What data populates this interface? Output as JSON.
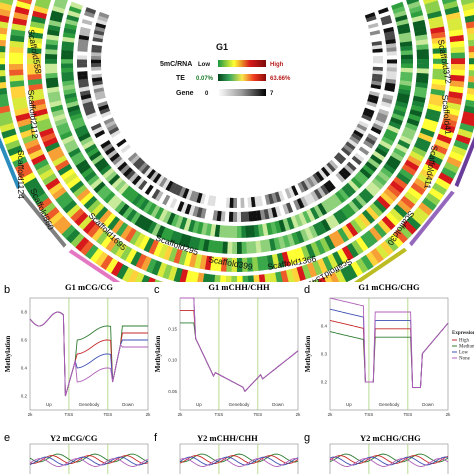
{
  "circos": {
    "title": "G1",
    "legend": [
      {
        "label": "5mC/RNA",
        "low": "Low",
        "high": "High",
        "colors": [
          "#1a9641",
          "#ffff33",
          "#d7191c",
          "#7b0b0b"
        ]
      },
      {
        "label": "TE",
        "low": "0.07%",
        "high": "63.66%",
        "colors": [
          "#00441b",
          "#41ab5d",
          "#f7e94a",
          "#f03b20",
          "#8c0a0a"
        ]
      },
      {
        "label": "Gene",
        "low": "0",
        "high": "7",
        "colors": [
          "#ffffff",
          "#999999",
          "#000000"
        ]
      }
    ],
    "low_color": "#2e9e3e",
    "high_color": "#c5181c",
    "scaffolds_left": [
      "Scaffold558",
      "Scaffold2112",
      "Scaffold1124",
      "Scaffold860",
      "Scaffold1695",
      "Scaffold295",
      "Scaffold399",
      "Scaffold1366"
    ],
    "scaffolds_right": [
      "Scaffold372",
      "Scaffold41",
      "Scaffold411",
      "Scaffold30",
      "Scaffold1341"
    ]
  },
  "panels": [
    {
      "letter": "b",
      "title": "G1 mCG/CG",
      "ylabel": "Methylation",
      "yticks": [
        "0.2",
        "0.4",
        "0.6",
        "0.8"
      ],
      "ymin": 0.1,
      "ymax": 0.9,
      "xticks": [
        "2k",
        "TSS",
        "TES",
        "2k"
      ],
      "regions": [
        "Up",
        "Genebody",
        "Down"
      ],
      "series_colors": [
        "#2e7d32",
        "#c62828",
        "#3f51b5",
        "#b05fb8"
      ]
    },
    {
      "letter": "c",
      "title": "G1 mCHH/CHH",
      "ylabel": "Methylation",
      "yticks": [
        "0.05",
        "0.10",
        "0.15"
      ],
      "ymin": 0.02,
      "ymax": 0.2,
      "xticks": [
        "2k",
        "TSS",
        "TES",
        "2k"
      ],
      "regions": [
        "Up",
        "Genebody",
        "Down"
      ],
      "series_colors": [
        "#2e7d32",
        "#c62828",
        "#3f51b5",
        "#b05fb8"
      ]
    },
    {
      "letter": "d",
      "title": "G1 mCHG/CHG",
      "ylabel": "Methylation",
      "yticks": [
        "0.2",
        "0.3",
        "0.4"
      ],
      "ymin": 0.1,
      "ymax": 0.5,
      "xticks": [
        "2k",
        "TSS",
        "TES",
        "2k"
      ],
      "regions": [
        "Up",
        "Genebody",
        "Down"
      ],
      "series_colors": [
        "#2e7d32",
        "#c62828",
        "#3f51b5",
        "#b05fb8"
      ]
    },
    {
      "letter": "e",
      "title": "Y2 mCG/CG",
      "partial": true
    },
    {
      "letter": "f",
      "title": "Y2 mCHH/CHH",
      "partial": true
    },
    {
      "letter": "g",
      "title": "Y2 mCHG/CHG",
      "partial": true
    }
  ],
  "expression_legend": {
    "title": "Expression",
    "items": [
      {
        "label": "High",
        "color": "#c62828"
      },
      {
        "label": "Medium",
        "color": "#2e7d32"
      },
      {
        "label": "Low",
        "color": "#3f51b5"
      },
      {
        "label": "None",
        "color": "#b05fb8"
      }
    ]
  }
}
